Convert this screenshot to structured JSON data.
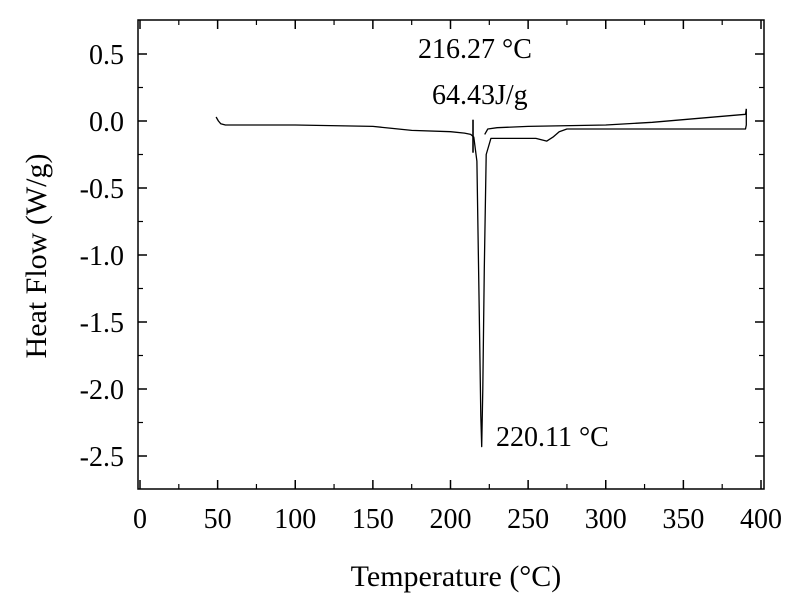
{
  "chart_data": {
    "type": "line",
    "title": "",
    "xlabel": "Temperature (°C)",
    "ylabel": "Heat Flow (W/g)",
    "xlim": [
      0,
      400
    ],
    "ylim": [
      -2.75,
      0.75
    ],
    "x_ticks": [
      0,
      50,
      100,
      150,
      200,
      250,
      300,
      350,
      400
    ],
    "y_ticks": [
      0.5,
      0.0,
      -0.5,
      -1.0,
      -1.5,
      -2.0,
      -2.5
    ],
    "x_tick_labels": [
      "0",
      "50",
      "100",
      "150",
      "200",
      "250",
      "300",
      "350",
      "400"
    ],
    "y_tick_labels": [
      "0.5",
      "0.0",
      "-0.5",
      "-1.0",
      "-1.5",
      "-2.0",
      "-2.5"
    ],
    "grid": false,
    "series": [
      {
        "x": [
          49,
          50.5,
          52,
          55,
          100,
          150,
          175,
          200,
          209,
          213,
          215,
          217,
          218.5,
          219.5,
          220.11,
          220.8,
          221.8,
          223,
          226,
          240,
          255,
          262,
          266,
          270,
          275,
          300,
          340,
          370,
          390,
          390.5,
          390.5
        ],
        "y": [
          0.03,
          0.0,
          -0.02,
          -0.03,
          -0.03,
          -0.04,
          -0.07,
          -0.08,
          -0.09,
          -0.1,
          -0.12,
          -0.3,
          -1.4,
          -2.2,
          -2.43,
          -2.0,
          -1.1,
          -0.25,
          -0.13,
          -0.13,
          -0.13,
          -0.15,
          -0.12,
          -0.08,
          -0.06,
          -0.06,
          -0.06,
          -0.06,
          -0.06,
          -0.03,
          0.09
        ]
      },
      {
        "x": [
          222,
          224,
          230,
          250,
          300,
          330,
          360,
          390,
          390.5
        ],
        "y": [
          -0.1,
          -0.06,
          -0.05,
          -0.04,
          -0.03,
          -0.01,
          0.02,
          0.05,
          0.09
        ]
      }
    ],
    "annotations": [
      {
        "lines": [
          "216.27 °C",
          "64.43J/g"
        ],
        "x": 216.27
      },
      {
        "lines": [
          "220.11 °C"
        ],
        "x": 220.11,
        "y": -2.43
      }
    ],
    "markers": [
      {
        "x": 214.5,
        "y": -0.05
      }
    ]
  }
}
